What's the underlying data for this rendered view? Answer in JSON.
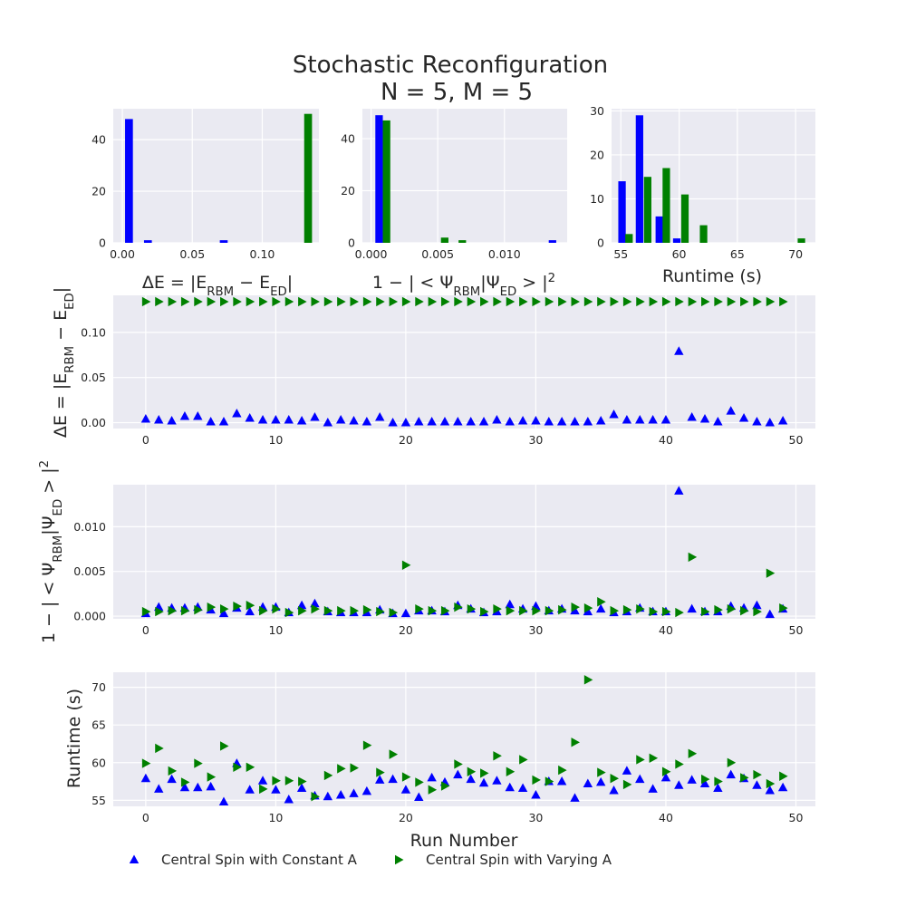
{
  "figure": {
    "title_line1": "Stochastic Reconfiguration",
    "title_line2": "N = 5, M = 5"
  },
  "colors": {
    "constant": "#0000ff",
    "varying": "#008000",
    "background": "#eaeaf2",
    "grid": "#ffffff",
    "text": "#262626"
  },
  "legend": {
    "placement": "bottom",
    "items": [
      {
        "label": "Central Spin with Constant A",
        "marker": "triangle-up",
        "color": "#0000ff"
      },
      {
        "label": "Central Spin with Varying A",
        "marker": "triangle-right",
        "color": "#008000"
      }
    ]
  },
  "chart_data": [
    {
      "id": "hist-energy",
      "type": "bar",
      "xlabel_parts": [
        {
          "t": "ΔE = |E"
        },
        {
          "t": "RBM",
          "sub": true
        },
        {
          "t": " − E"
        },
        {
          "t": "ED",
          "sub": true
        },
        {
          "t": "|"
        }
      ],
      "xlim": [
        -0.0065,
        0.1405
      ],
      "ylim": [
        0,
        52
      ],
      "xticks": [
        0.0,
        0.05,
        0.1
      ],
      "xtick_labels": [
        "0.00",
        "0.05",
        "0.10"
      ],
      "yticks": [
        0,
        20,
        40
      ],
      "ytick_labels": [
        "0",
        "20",
        "40"
      ],
      "bin_width": 0.0056,
      "series": [
        {
          "name": "Central Spin with Constant A",
          "color": "#0000ff",
          "bins": [
            {
              "x": 0.00474,
              "v": 48
            },
            {
              "x": 0.01829,
              "v": 1
            },
            {
              "x": 0.07248,
              "v": 1
            }
          ]
        },
        {
          "name": "Central Spin with Varying A",
          "color": "#008000",
          "bins": [
            {
              "x": 0.13277,
              "v": 50
            }
          ]
        }
      ]
    },
    {
      "id": "hist-fidelity",
      "type": "bar",
      "xlabel_parts": [
        {
          "t": "1 − | < Ψ"
        },
        {
          "t": "RBM",
          "sub": true
        },
        {
          "t": "|Ψ"
        },
        {
          "t": "ED",
          "sub": true
        },
        {
          "t": " > |"
        },
        {
          "t": "2",
          "sup": true
        }
      ],
      "xlim": [
        -0.00065,
        0.0147
      ],
      "ylim": [
        0,
        51.5
      ],
      "xticks": [
        0.0,
        0.005,
        0.01
      ],
      "xtick_labels": [
        "0.000",
        "0.005",
        "0.010"
      ],
      "yticks": [
        0,
        20,
        40
      ],
      "ytick_labels": [
        "0",
        "20",
        "40"
      ],
      "bin_width": 0.00056,
      "series": [
        {
          "name": "Central Spin with Constant A",
          "color": "#0000ff",
          "bins": [
            {
              "x": 0.0006,
              "v": 49
            },
            {
              "x": 0.0136,
              "v": 1
            }
          ]
        },
        {
          "name": "Central Spin with Varying A",
          "color": "#008000",
          "bins": [
            {
              "x": 0.00116,
              "v": 47
            },
            {
              "x": 0.00552,
              "v": 2
            },
            {
              "x": 0.00684,
              "v": 1
            }
          ]
        }
      ]
    },
    {
      "id": "hist-runtime",
      "type": "bar",
      "xlabel_parts": [
        {
          "t": "Runtime (s)"
        }
      ],
      "xlim": [
        54.2,
        71.7
      ],
      "ylim": [
        0,
        30.5
      ],
      "xticks": [
        55,
        60,
        65,
        70
      ],
      "xtick_labels": [
        "55",
        "60",
        "65",
        "70"
      ],
      "yticks": [
        0,
        10,
        20,
        30
      ],
      "ytick_labels": [
        "0",
        "10",
        "20",
        "30"
      ],
      "bin_width": 0.64,
      "series": [
        {
          "name": "Central Spin with Constant A",
          "color": "#0000ff",
          "bins": [
            {
              "x": 55.1,
              "v": 14
            },
            {
              "x": 56.6,
              "v": 29
            },
            {
              "x": 58.3,
              "v": 6
            },
            {
              "x": 59.8,
              "v": 1
            }
          ]
        },
        {
          "name": "Central Spin with Varying A",
          "color": "#008000",
          "bins": [
            {
              "x": 55.7,
              "v": 2
            },
            {
              "x": 57.3,
              "v": 15
            },
            {
              "x": 58.9,
              "v": 17
            },
            {
              "x": 60.5,
              "v": 11
            },
            {
              "x": 62.1,
              "v": 4
            },
            {
              "x": 70.5,
              "v": 1
            }
          ]
        }
      ]
    },
    {
      "id": "scatter-energy",
      "type": "scatter",
      "ylabel_parts": [
        {
          "t": "ΔE = |E"
        },
        {
          "t": "RBM",
          "sub": true
        },
        {
          "t": " − E"
        },
        {
          "t": "ED",
          "sub": true
        },
        {
          "t": "|"
        }
      ],
      "xlim": [
        -2.5,
        51.5
      ],
      "ylim": [
        -0.0065,
        0.141
      ],
      "xticks": [
        0,
        10,
        20,
        30,
        40,
        50
      ],
      "xtick_labels": [
        "0",
        "10",
        "20",
        "30",
        "40",
        "50"
      ],
      "yticks": [
        0.0,
        0.05,
        0.1
      ],
      "ytick_labels": [
        "0.00",
        "0.05",
        "0.10"
      ],
      "series": [
        {
          "name": "Central Spin with Constant A",
          "color": "#0000ff",
          "marker": "triangle-up",
          "x": [
            0,
            1,
            2,
            3,
            4,
            5,
            6,
            7,
            8,
            9,
            10,
            11,
            12,
            13,
            14,
            15,
            16,
            17,
            18,
            19,
            20,
            21,
            22,
            23,
            24,
            25,
            26,
            27,
            28,
            29,
            30,
            31,
            32,
            33,
            34,
            35,
            36,
            37,
            38,
            39,
            40,
            41,
            42,
            43,
            44,
            45,
            46,
            47,
            48,
            49
          ],
          "y": [
            0.004,
            0.003,
            0.002,
            0.007,
            0.007,
            0.001,
            0.001,
            0.01,
            0.005,
            0.003,
            0.003,
            0.003,
            0.002,
            0.006,
            0.0,
            0.003,
            0.002,
            0.001,
            0.006,
            0.0,
            0.0,
            0.001,
            0.001,
            0.001,
            0.001,
            0.001,
            0.001,
            0.003,
            0.001,
            0.002,
            0.002,
            0.001,
            0.001,
            0.001,
            0.001,
            0.002,
            0.009,
            0.003,
            0.003,
            0.003,
            0.003,
            0.079,
            0.006,
            0.004,
            0.001,
            0.013,
            0.005,
            0.001,
            0.0,
            0.002
          ]
        },
        {
          "name": "Central Spin with Varying A",
          "color": "#008000",
          "marker": "triangle-right",
          "x": [
            0,
            1,
            2,
            3,
            4,
            5,
            6,
            7,
            8,
            9,
            10,
            11,
            12,
            13,
            14,
            15,
            16,
            17,
            18,
            19,
            20,
            21,
            22,
            23,
            24,
            25,
            26,
            27,
            28,
            29,
            30,
            31,
            32,
            33,
            34,
            35,
            36,
            37,
            38,
            39,
            40,
            41,
            42,
            43,
            44,
            45,
            46,
            47,
            48,
            49
          ],
          "y": [
            0.134,
            0.134,
            0.134,
            0.134,
            0.134,
            0.134,
            0.134,
            0.134,
            0.134,
            0.134,
            0.134,
            0.134,
            0.134,
            0.134,
            0.134,
            0.134,
            0.134,
            0.134,
            0.134,
            0.134,
            0.134,
            0.134,
            0.134,
            0.134,
            0.134,
            0.134,
            0.134,
            0.134,
            0.134,
            0.134,
            0.134,
            0.134,
            0.134,
            0.134,
            0.134,
            0.134,
            0.134,
            0.134,
            0.134,
            0.134,
            0.134,
            0.134,
            0.134,
            0.134,
            0.134,
            0.134,
            0.134,
            0.134,
            0.134,
            0.134
          ]
        }
      ]
    },
    {
      "id": "scatter-fidelity",
      "type": "scatter",
      "ylabel_parts": [
        {
          "t": "1 − | < Ψ"
        },
        {
          "t": "RBM",
          "sub": true
        },
        {
          "t": "|Ψ"
        },
        {
          "t": "ED",
          "sub": true
        },
        {
          "t": " > |"
        },
        {
          "t": "2",
          "sup": true
        }
      ],
      "xlim": [
        -2.5,
        51.5
      ],
      "ylim": [
        -0.0003,
        0.0147
      ],
      "xticks": [
        0,
        10,
        20,
        30,
        40,
        50
      ],
      "xtick_labels": [
        "0",
        "10",
        "20",
        "30",
        "40",
        "50"
      ],
      "yticks": [
        0.0,
        0.005,
        0.01
      ],
      "ytick_labels": [
        "0.000",
        "0.005",
        "0.010"
      ],
      "series": [
        {
          "name": "Central Spin with Constant A",
          "color": "#0000ff",
          "marker": "triangle-up",
          "x": [
            0,
            1,
            2,
            3,
            4,
            5,
            6,
            7,
            8,
            9,
            10,
            11,
            12,
            13,
            14,
            15,
            16,
            17,
            18,
            19,
            20,
            21,
            22,
            23,
            24,
            25,
            26,
            27,
            28,
            29,
            30,
            31,
            32,
            33,
            34,
            35,
            36,
            37,
            38,
            39,
            40,
            41,
            42,
            43,
            44,
            45,
            46,
            47,
            48,
            49
          ],
          "y": [
            0.0003,
            0.001,
            0.0009,
            0.0009,
            0.001,
            0.0007,
            0.0003,
            0.0009,
            0.0005,
            0.001,
            0.001,
            0.0004,
            0.0012,
            0.0014,
            0.0005,
            0.0004,
            0.0004,
            0.0004,
            0.0007,
            0.0003,
            0.0003,
            0.0006,
            0.0006,
            0.0005,
            0.0012,
            0.0008,
            0.0004,
            0.0005,
            0.0013,
            0.0008,
            0.0011,
            0.0006,
            0.0008,
            0.0006,
            0.0005,
            0.0008,
            0.0004,
            0.0005,
            0.0009,
            0.0005,
            0.0005,
            0.014,
            0.0008,
            0.0005,
            0.0005,
            0.0011,
            0.0009,
            0.0012,
            0.0002,
            0.0008
          ]
        },
        {
          "name": "Central Spin with Varying A",
          "color": "#008000",
          "marker": "triangle-right",
          "x": [
            0,
            1,
            2,
            3,
            4,
            5,
            6,
            7,
            8,
            9,
            10,
            11,
            12,
            13,
            14,
            15,
            16,
            17,
            18,
            19,
            20,
            21,
            22,
            23,
            24,
            25,
            26,
            27,
            28,
            29,
            30,
            31,
            32,
            33,
            34,
            35,
            36,
            37,
            38,
            39,
            40,
            41,
            42,
            43,
            44,
            45,
            46,
            47,
            48,
            49
          ],
          "y": [
            0.0005,
            0.0005,
            0.0006,
            0.0006,
            0.0007,
            0.001,
            0.0008,
            0.0011,
            0.0012,
            0.0006,
            0.0008,
            0.0004,
            0.0006,
            0.0008,
            0.0006,
            0.0006,
            0.0006,
            0.0007,
            0.0005,
            0.0004,
            0.0057,
            0.0008,
            0.0006,
            0.0006,
            0.001,
            0.0008,
            0.0005,
            0.0008,
            0.0006,
            0.0006,
            0.0006,
            0.0006,
            0.0007,
            0.001,
            0.0009,
            0.0016,
            0.0006,
            0.0007,
            0.0008,
            0.0005,
            0.0005,
            0.0004,
            0.0066,
            0.0005,
            0.0007,
            0.0008,
            0.0006,
            0.0005,
            0.0048,
            0.0009
          ]
        }
      ]
    },
    {
      "id": "scatter-runtime",
      "type": "scatter",
      "ylabel_parts": [
        {
          "t": "Runtime (s)"
        }
      ],
      "xlabel_parts": [
        {
          "t": "Run Number"
        }
      ],
      "xlim": [
        -2.5,
        51.5
      ],
      "ylim": [
        54.2,
        72.0
      ],
      "xticks": [
        0,
        10,
        20,
        30,
        40,
        50
      ],
      "xtick_labels": [
        "0",
        "10",
        "20",
        "30",
        "40",
        "50"
      ],
      "yticks": [
        55,
        60,
        65,
        70
      ],
      "ytick_labels": [
        "55",
        "60",
        "65",
        "70"
      ],
      "series": [
        {
          "name": "Central Spin with Constant A",
          "color": "#0000ff",
          "marker": "triangle-up",
          "x": [
            0,
            1,
            2,
            3,
            4,
            5,
            6,
            7,
            8,
            9,
            10,
            11,
            12,
            13,
            14,
            15,
            16,
            17,
            18,
            19,
            20,
            21,
            22,
            23,
            24,
            25,
            26,
            27,
            28,
            29,
            30,
            31,
            32,
            33,
            34,
            35,
            36,
            37,
            38,
            39,
            40,
            41,
            42,
            43,
            44,
            45,
            46,
            47,
            48,
            49
          ],
          "y": [
            57.9,
            56.5,
            57.8,
            56.7,
            56.7,
            56.8,
            54.8,
            59.9,
            56.4,
            57.6,
            56.4,
            55.1,
            56.6,
            55.6,
            55.5,
            55.7,
            55.9,
            56.2,
            57.7,
            57.8,
            56.4,
            55.4,
            58.0,
            57.4,
            58.4,
            57.8,
            57.3,
            57.6,
            56.7,
            56.6,
            55.7,
            57.5,
            57.5,
            55.3,
            57.2,
            57.4,
            56.3,
            58.9,
            57.8,
            56.5,
            58.0,
            57.0,
            57.7,
            57.2,
            56.6,
            58.4,
            57.9,
            57.0,
            56.3,
            56.7
          ]
        },
        {
          "name": "Central Spin with Varying A",
          "color": "#008000",
          "marker": "triangle-right",
          "x": [
            0,
            1,
            2,
            3,
            4,
            5,
            6,
            7,
            8,
            9,
            10,
            11,
            12,
            13,
            14,
            15,
            16,
            17,
            18,
            19,
            20,
            21,
            22,
            23,
            24,
            25,
            26,
            27,
            28,
            29,
            30,
            31,
            32,
            33,
            34,
            35,
            36,
            37,
            38,
            39,
            40,
            41,
            42,
            43,
            44,
            45,
            46,
            47,
            48,
            49
          ],
          "y": [
            59.9,
            61.9,
            58.9,
            57.4,
            59.9,
            58.1,
            62.2,
            59.4,
            59.4,
            56.5,
            57.6,
            57.6,
            57.5,
            55.5,
            58.3,
            59.2,
            59.3,
            62.3,
            58.7,
            61.1,
            58.1,
            57.4,
            56.4,
            56.9,
            59.8,
            58.8,
            58.6,
            60.9,
            58.8,
            60.4,
            57.7,
            57.5,
            59.0,
            62.7,
            71.0,
            58.7,
            57.9,
            57.1,
            60.4,
            60.6,
            58.8,
            59.8,
            61.2,
            57.8,
            57.5,
            60.0,
            58.0,
            58.4,
            57.2,
            58.2
          ]
        }
      ]
    }
  ]
}
